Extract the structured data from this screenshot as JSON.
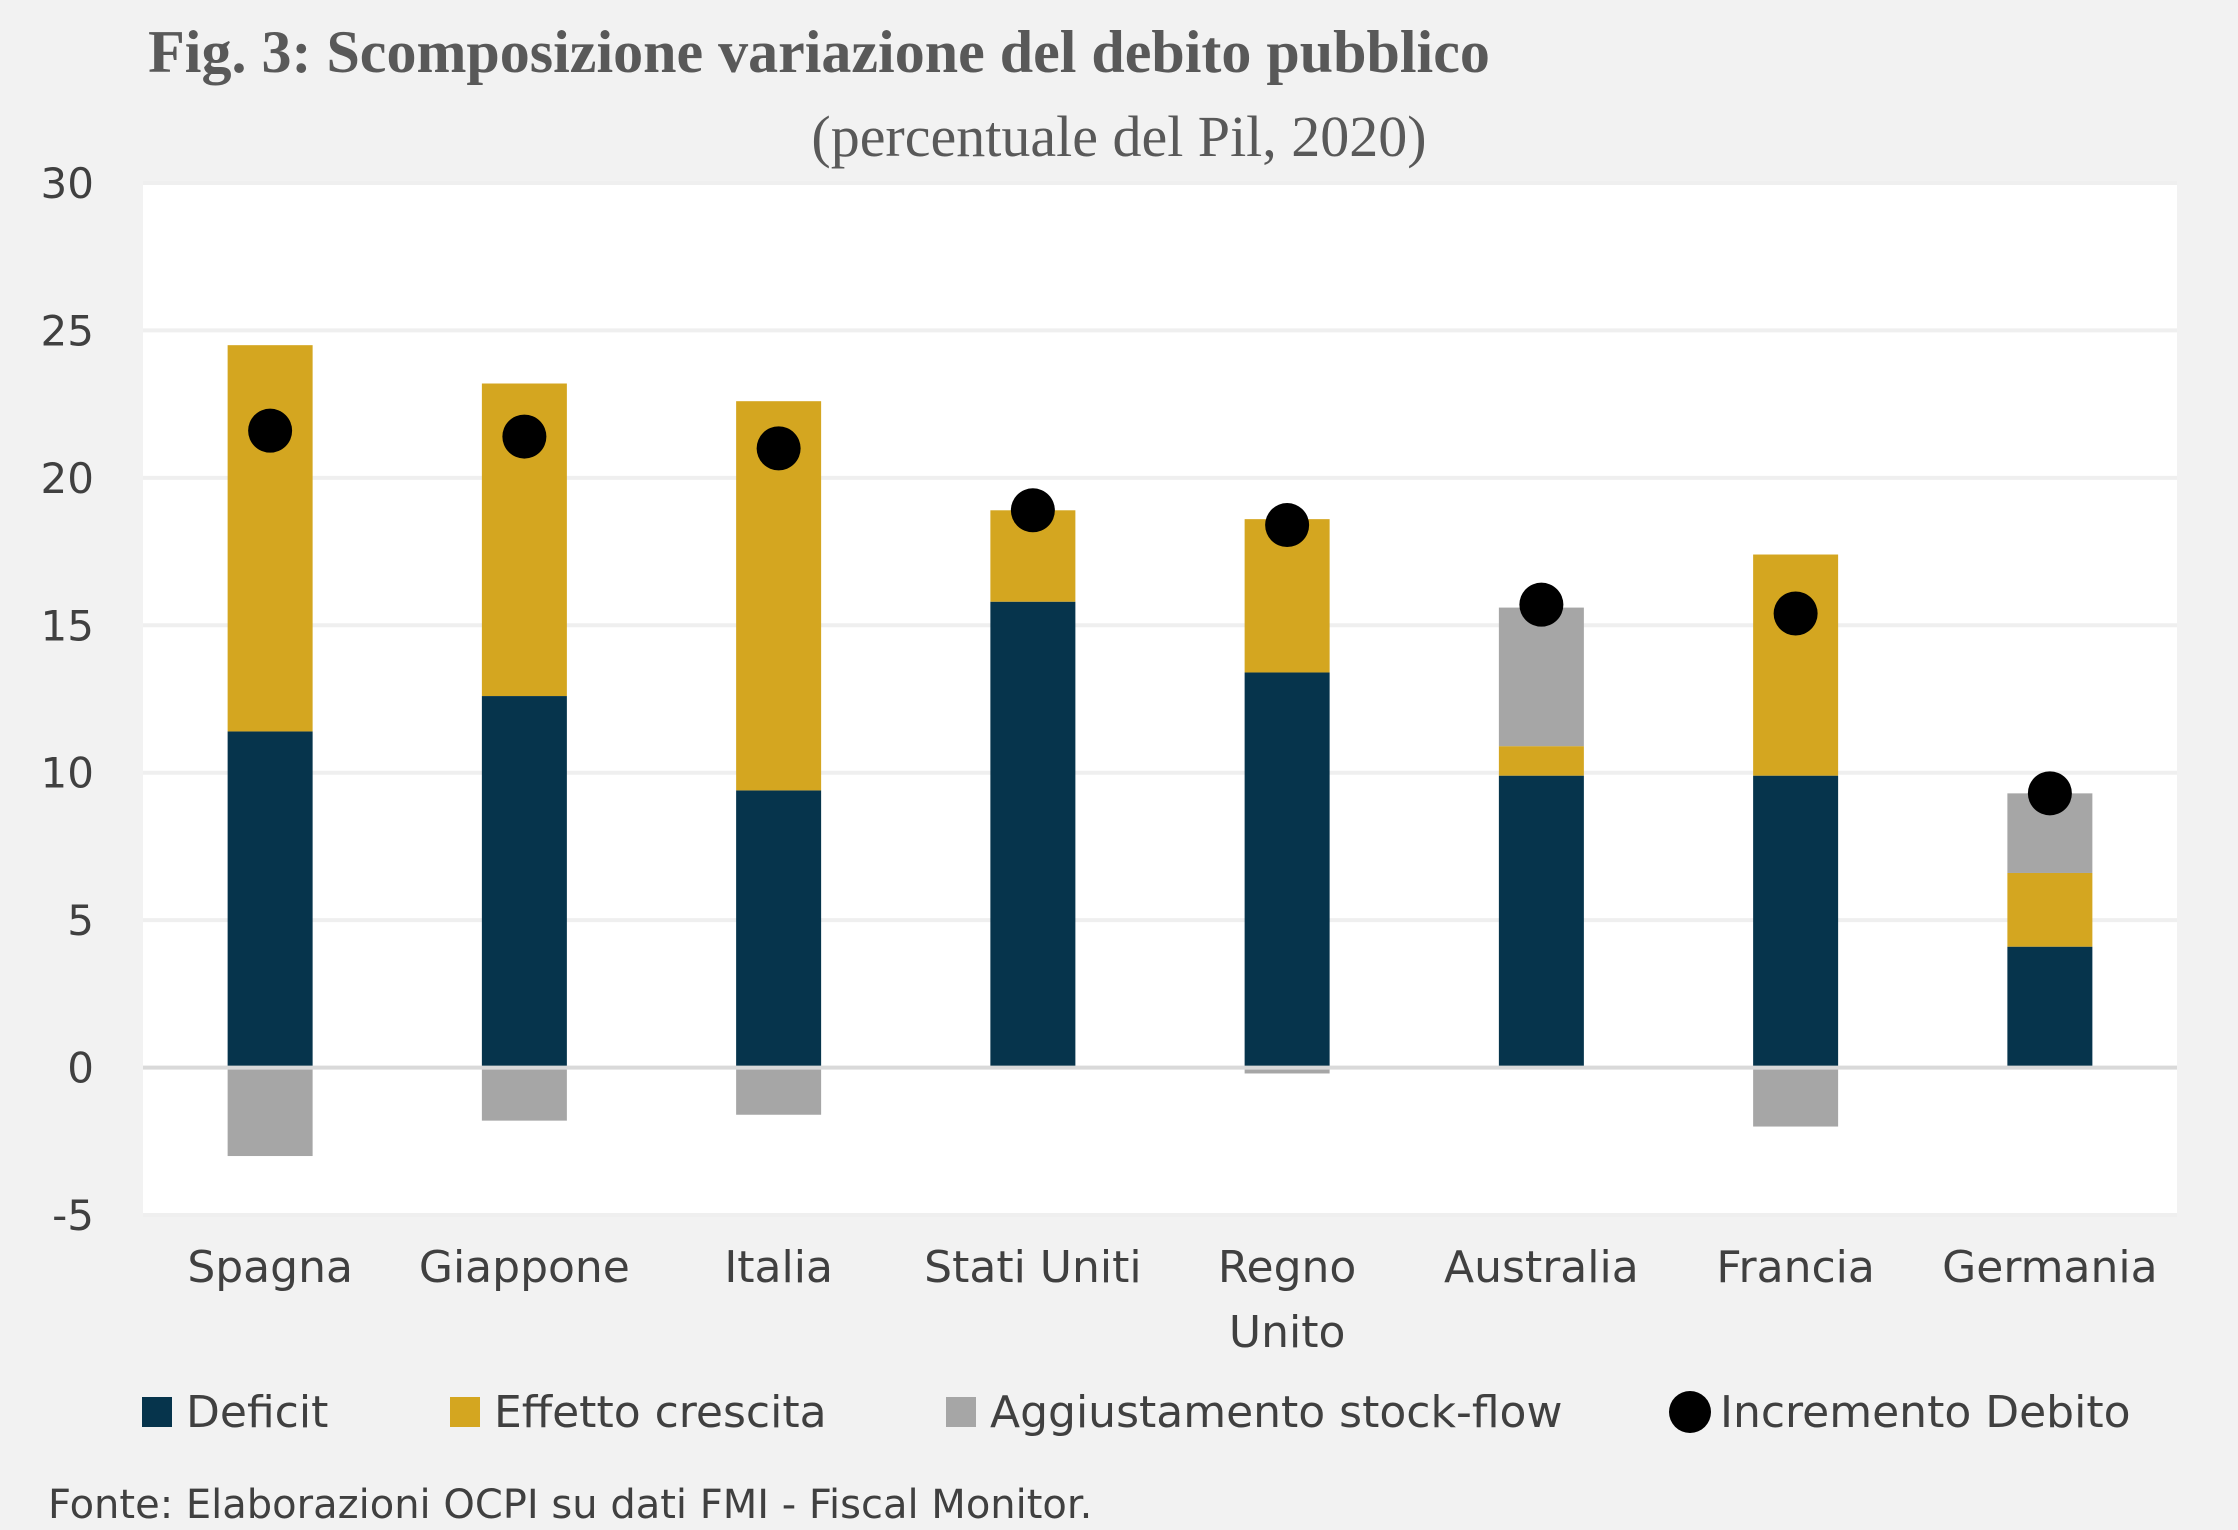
{
  "chart_data": {
    "type": "bar",
    "stacked": true,
    "title": "Fig. 3: Scomposizione variazione del debito pubblico",
    "subtitle": "(percentuale del Pil, 2020)",
    "categories": [
      "Spagna",
      "Giappone",
      "Italia",
      "Stati Uniti",
      "Regno Unito",
      "Australia",
      "Francia",
      "Germania"
    ],
    "category_lines": [
      [
        "Spagna"
      ],
      [
        "Giappone"
      ],
      [
        "Italia"
      ],
      [
        "Stati Uniti"
      ],
      [
        "Regno",
        "Unito"
      ],
      [
        "Australia"
      ],
      [
        "Francia"
      ],
      [
        "Germania"
      ]
    ],
    "ylim": [
      -5,
      30
    ],
    "yticks": [
      30,
      25,
      20,
      15,
      10,
      5,
      0,
      -5
    ],
    "grid": true,
    "legend_position": "bottom",
    "series": [
      {
        "name": "Deficit",
        "kind": "bar",
        "color": "#06344c",
        "values": [
          11.4,
          12.6,
          9.4,
          15.8,
          13.4,
          9.9,
          9.9,
          4.1
        ]
      },
      {
        "name": "Effetto crescita",
        "kind": "bar",
        "color": "#d4a620",
        "values": [
          13.1,
          10.6,
          13.2,
          3.1,
          5.2,
          1.0,
          7.5,
          2.5
        ]
      },
      {
        "name": "Aggiustamento stock-flow",
        "kind": "bar",
        "color": "#a6a6a6",
        "values": [
          -3.0,
          -1.8,
          -1.6,
          0.0,
          -0.2,
          4.7,
          -2.0,
          2.7
        ]
      },
      {
        "name": "Incremento Debito",
        "kind": "marker",
        "color": "#000000",
        "values": [
          21.6,
          21.4,
          21.0,
          18.9,
          18.4,
          15.7,
          15.4,
          9.3
        ]
      }
    ],
    "source": "Fonte: Elaborazioni OCPI su dati FMI - Fiscal Monitor."
  }
}
